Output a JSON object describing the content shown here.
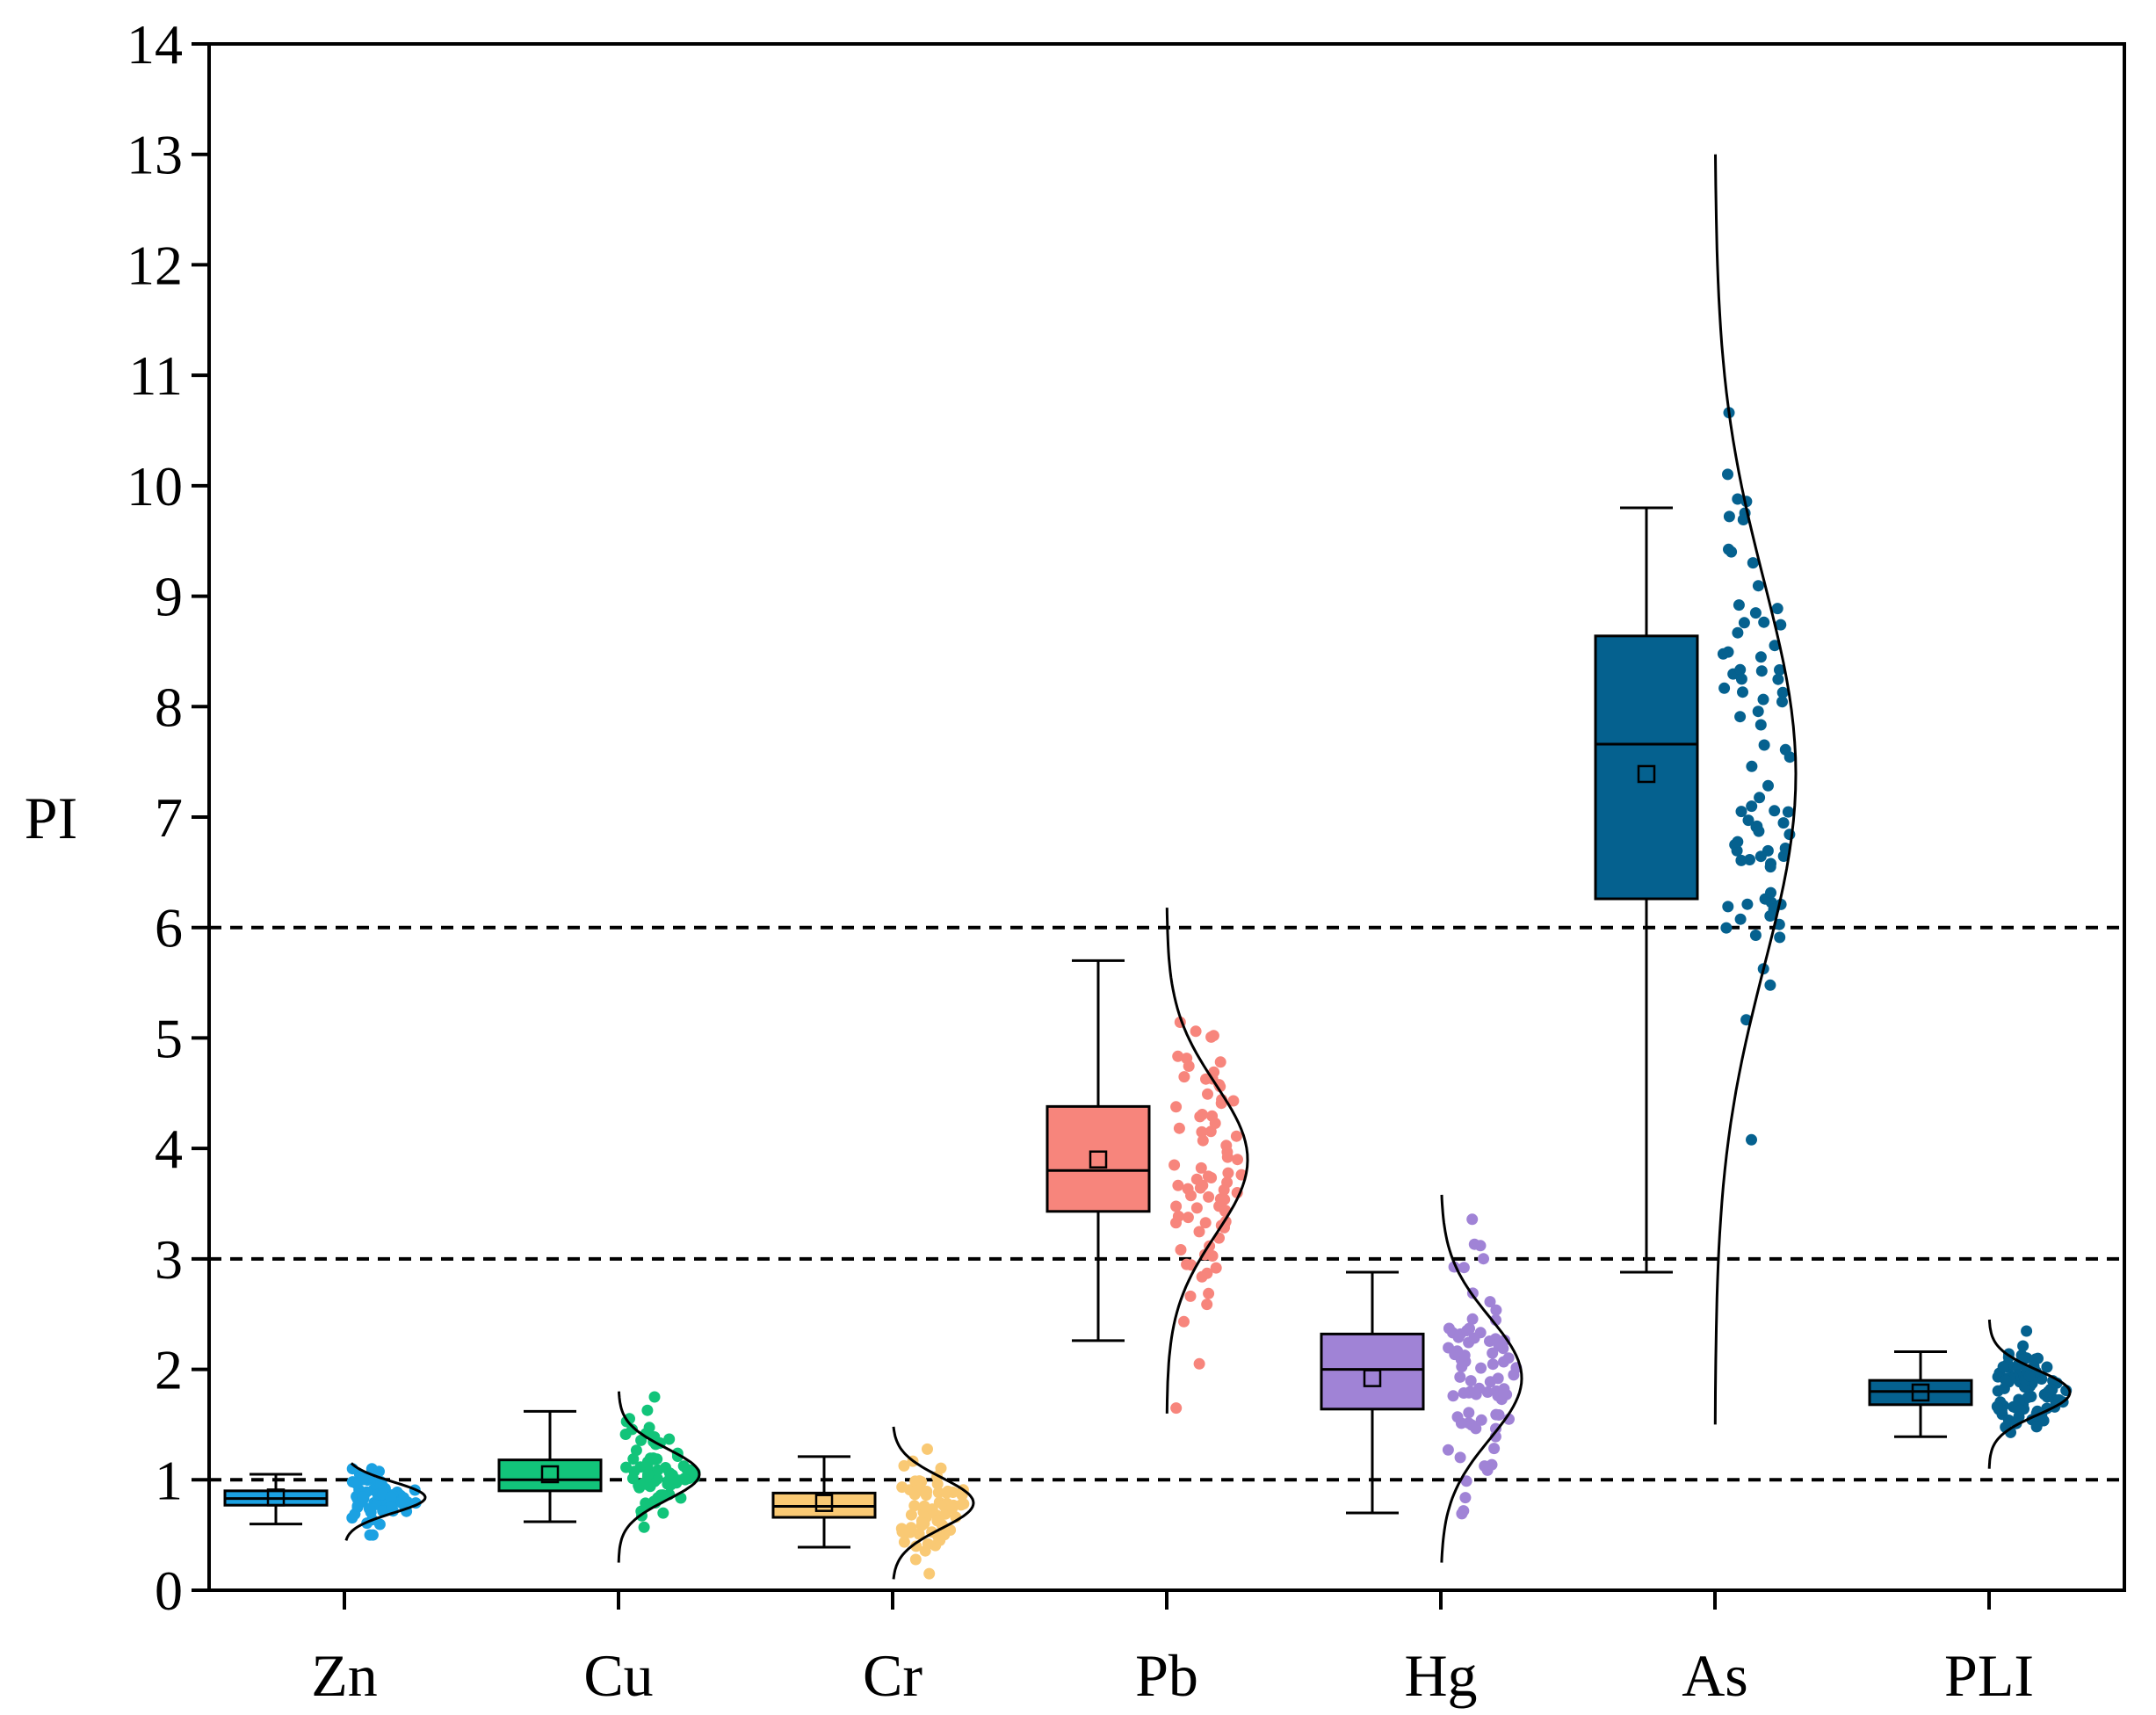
{
  "chart_data": {
    "type": "box",
    "ylabel": "PI",
    "xlabel": "",
    "ylim": [
      0,
      14
    ],
    "yticks": [
      "0",
      "1",
      "2",
      "3",
      "4",
      "5",
      "6",
      "7",
      "8",
      "9",
      "10",
      "11",
      "12",
      "13",
      "14"
    ],
    "reference_lines": [
      1,
      3,
      6
    ],
    "categories": [
      "Zn",
      "Cu",
      "Cr",
      "Pb",
      "Hg",
      "As",
      "PLI"
    ],
    "series": [
      {
        "name": "Zn",
        "color": "#1ba1e2",
        "q1": 0.77,
        "median": 0.83,
        "q3": 0.9,
        "mean": 0.84,
        "whisker_low": 0.6,
        "whisker_high": 1.05,
        "dist_mean": 0.84,
        "dist_sd": 0.14,
        "dist_min": 0.45,
        "dist_max": 1.15,
        "n_points": 60
      },
      {
        "name": "Cu",
        "color": "#12c47a",
        "q1": 0.9,
        "median": 1.0,
        "q3": 1.18,
        "mean": 1.05,
        "whisker_low": 0.62,
        "whisker_high": 1.62,
        "dist_mean": 1.05,
        "dist_sd": 0.23,
        "dist_min": 0.25,
        "dist_max": 1.8,
        "n_points": 70
      },
      {
        "name": "Cr",
        "color": "#f9c974",
        "q1": 0.66,
        "median": 0.76,
        "q3": 0.88,
        "mean": 0.79,
        "whisker_low": 0.39,
        "whisker_high": 1.21,
        "dist_mean": 0.79,
        "dist_sd": 0.23,
        "dist_min": 0.1,
        "dist_max": 1.48,
        "n_points": 65
      },
      {
        "name": "Pb",
        "color": "#f7857c",
        "q1": 3.43,
        "median": 3.8,
        "q3": 4.38,
        "mean": 3.9,
        "whisker_low": 2.26,
        "whisker_high": 5.7,
        "dist_mean": 3.9,
        "dist_sd": 0.68,
        "dist_min": 1.6,
        "dist_max": 6.18,
        "n_points": 80
      },
      {
        "name": "Hg",
        "color": "#a083d6",
        "q1": 1.64,
        "median": 2.0,
        "q3": 2.32,
        "mean": 1.92,
        "whisker_low": 0.7,
        "whisker_high": 2.88,
        "dist_mean": 1.92,
        "dist_sd": 0.55,
        "dist_min": 0.25,
        "dist_max": 3.58,
        "n_points": 80
      },
      {
        "name": "As",
        "color": "#05618f",
        "q1": 6.26,
        "median": 7.66,
        "q3": 8.64,
        "mean": 7.39,
        "whisker_low": 2.88,
        "whisker_high": 9.8,
        "dist_mean": 7.39,
        "dist_sd": 1.75,
        "dist_min": 1.5,
        "dist_max": 13.0,
        "n_points": 80
      },
      {
        "name": "PLI",
        "color": "#05618f",
        "q1": 1.68,
        "median": 1.8,
        "q3": 1.9,
        "mean": 1.79,
        "whisker_low": 1.39,
        "whisker_high": 2.16,
        "dist_mean": 1.79,
        "dist_sd": 0.2,
        "dist_min": 1.1,
        "dist_max": 2.45,
        "n_points": 80
      }
    ]
  }
}
